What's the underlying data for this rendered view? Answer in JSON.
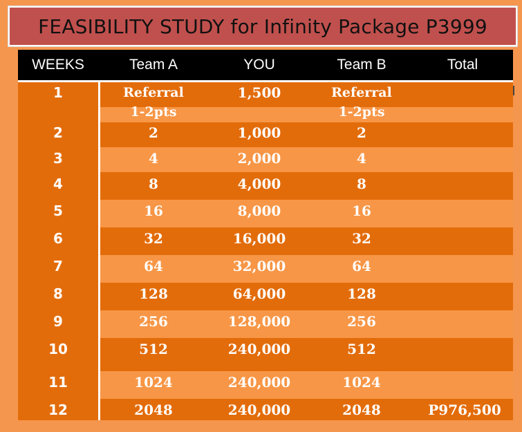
{
  "title": "FEASIBILITY STUDY for Infinity Package P3999",
  "headers": [
    "WEEKS",
    "Team A",
    "YOU",
    "Team B",
    "Total"
  ],
  "rows": [
    {
      "week": "1",
      "team_a": "Referral\n1-2pts",
      "you": "1,500",
      "team_b": "Referral\n1-2pts",
      "total": ""
    },
    {
      "week": "2",
      "team_a": "2",
      "you": "1,000",
      "team_b": "2",
      "total": ""
    },
    {
      "week": "3",
      "team_a": "4",
      "you": "2,000",
      "team_b": "4",
      "total": ""
    },
    {
      "week": "4",
      "team_a": "8",
      "you": "4,000",
      "team_b": "8",
      "total": ""
    },
    {
      "week": "5",
      "team_a": "16",
      "you": "8,000",
      "team_b": "16",
      "total": ""
    },
    {
      "week": "6",
      "team_a": "32",
      "you": "16,000",
      "team_b": "32",
      "total": ""
    },
    {
      "week": "7",
      "team_a": "64",
      "you": "32,000",
      "team_b": "64",
      "total": ""
    },
    {
      "week": "8",
      "team_a": "128",
      "you": "64,000",
      "team_b": "128",
      "total": ""
    },
    {
      "week": "9",
      "team_a": "256",
      "you": "128,000",
      "team_b": "256",
      "total": ""
    },
    {
      "week": "10",
      "team_a": "512",
      "you": "240,000",
      "team_b": "512",
      "total": ""
    },
    {
      "week": "11",
      "team_a": "1024",
      "you": "240,000",
      "team_b": "1024",
      "total": ""
    },
    {
      "week": "12",
      "team_a": "2048",
      "you": "240,000",
      "team_b": "2048",
      "total": "P976,500"
    }
  ],
  "colors": {
    "background": "#f5964f",
    "title_fill": "#c0504d",
    "header_fill": "#000000",
    "row_dark": "#e36c0a",
    "row_light": "#f79646"
  }
}
